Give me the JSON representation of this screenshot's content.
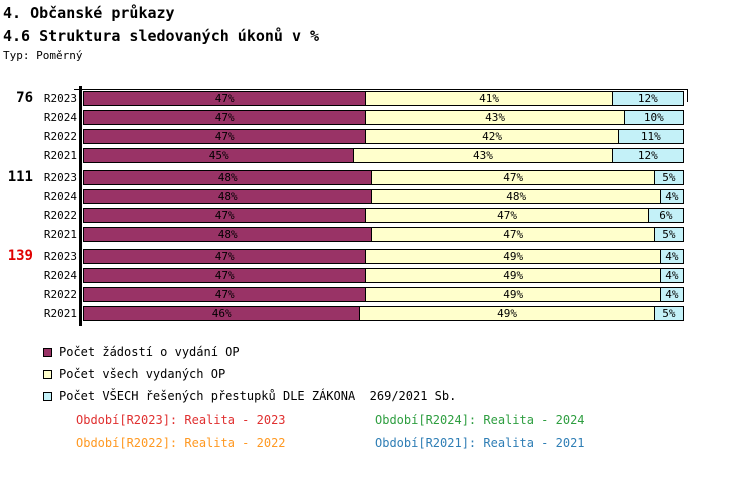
{
  "header": {
    "title1": "4. Občanské průkazy",
    "title2": "4.6 Struktura sledovaných úkonů v %",
    "type_label": "Typ: Poměrný"
  },
  "chart_data": {
    "type": "bar",
    "stacked": true,
    "orientation": "horizontal",
    "unit": "%",
    "value_range": [
      0,
      100
    ],
    "series": [
      {
        "name": "Počet žádostí o vydání OP",
        "color": "#993366"
      },
      {
        "name": "Počet všech vydaných OP",
        "color": "#FFFFCC"
      },
      {
        "name": "Počet VŠECH řešených přestupků DLE ZÁKONA  269/2021 Sb.",
        "color": "#C4F1F8"
      }
    ],
    "groups": [
      {
        "label": "76",
        "label_color": "#000000",
        "rows": [
          {
            "period": "R2023",
            "values": [
              47,
              41,
              12
            ]
          },
          {
            "period": "R2024",
            "values": [
              47,
              43,
              10
            ]
          },
          {
            "period": "R2022",
            "values": [
              47,
              42,
              11
            ]
          },
          {
            "period": "R2021",
            "values": [
              45,
              43,
              12
            ]
          }
        ]
      },
      {
        "label": "111",
        "label_color": "#000000",
        "rows": [
          {
            "period": "R2023",
            "values": [
              48,
              47,
              5
            ]
          },
          {
            "period": "R2024",
            "values": [
              48,
              48,
              4
            ]
          },
          {
            "period": "R2022",
            "values": [
              47,
              47,
              6
            ]
          },
          {
            "period": "R2021",
            "values": [
              48,
              47,
              5
            ]
          }
        ]
      },
      {
        "label": "139",
        "label_color": "#E00000",
        "rows": [
          {
            "period": "R2023",
            "values": [
              47,
              49,
              4
            ]
          },
          {
            "period": "R2024",
            "values": [
              47,
              49,
              4
            ]
          },
          {
            "period": "R2022",
            "values": [
              47,
              49,
              4
            ]
          },
          {
            "period": "R2021",
            "values": [
              46,
              49,
              5
            ]
          }
        ]
      }
    ]
  },
  "legend": {
    "items": [
      {
        "label": "Počet žádostí o vydání OP",
        "color": "#993366"
      },
      {
        "label": "Počet všech vydaných OP",
        "color": "#FFFFCC"
      },
      {
        "label": "Počet VŠECH řešených přestupků DLE ZÁKONA  269/2021 Sb.",
        "color": "#C4F1F8"
      }
    ]
  },
  "footer": {
    "items": [
      {
        "text": "Období[R2023]: Realita - 2023",
        "color": "#E03030"
      },
      {
        "text": "Období[R2024]: Realita - 2024",
        "color": "#2E9E40"
      },
      {
        "text": "Období[R2022]: Realita - 2022",
        "color": "#FF9922"
      },
      {
        "text": "Období[R2021]: Realita - 2021",
        "color": "#2F7EB5"
      }
    ]
  }
}
